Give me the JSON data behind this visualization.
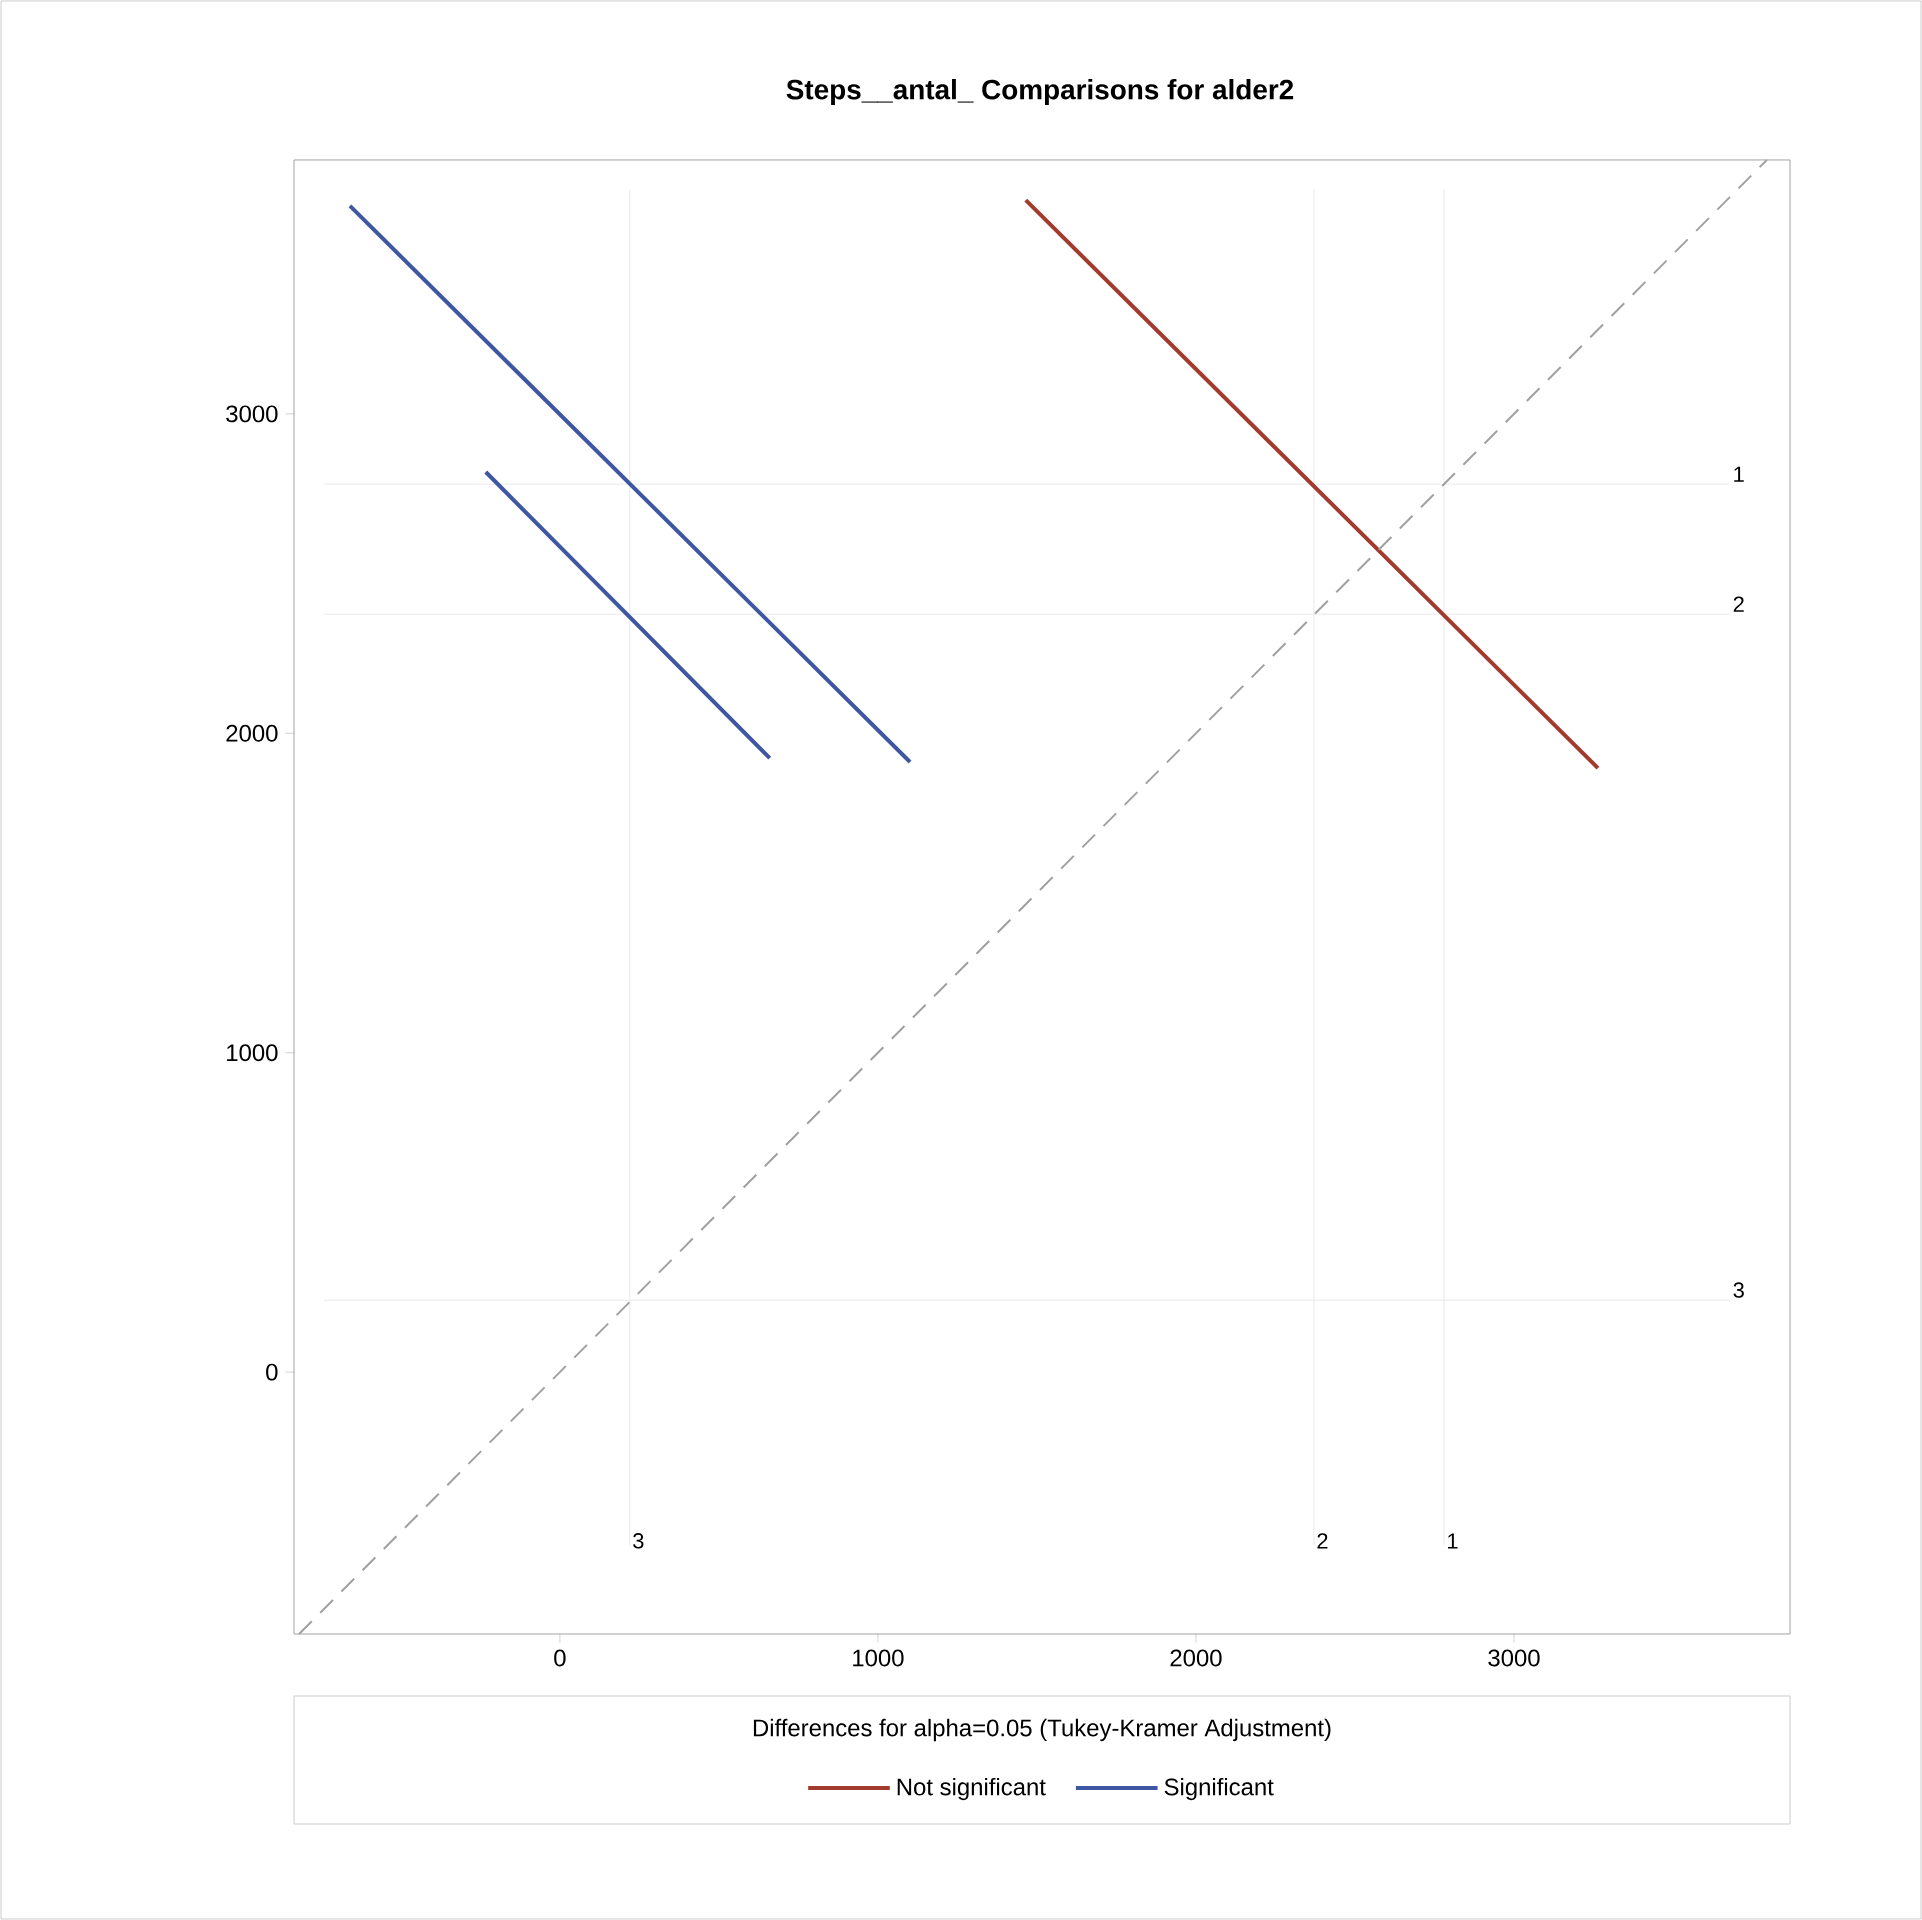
{
  "chart_data": {
    "type": "line",
    "title": "Steps__antal_ Comparisons for alder2",
    "legend_title": "Differences for alpha=0.05 (Tukey-Kramer Adjustment)",
    "xlim": [
      -836,
      3868
    ],
    "ylim": [
      -820,
      3795
    ],
    "xticks": [
      0,
      1000,
      2000,
      3000
    ],
    "yticks": [
      0,
      1000,
      2000,
      3000
    ],
    "grid": false,
    "legend": "bottom",
    "series": [
      {
        "name": "Not significant",
        "color": "#a23a2e",
        "x": [
          1465,
          3264
        ],
        "values": [
          3669,
          1891
        ]
      },
      {
        "name": "Significant",
        "color": "#3f57a3",
        "x": [
          -660,
          1101,
          200,
          -233,
          660
        ],
        "values": [
          3651,
          1910,
          null,
          2818,
          1922
        ]
      },
      {
        "color": "#a0a0a0",
        "line_style": "dashed",
        "x": [
          -820,
          3795
        ],
        "values": [
          -820,
          3795
        ]
      }
    ],
    "ref_lines": [
      {
        "axis": "x",
        "value": 2780
      },
      {
        "axis": "x",
        "value": 2371
      },
      {
        "axis": "x",
        "value": 220
      },
      {
        "axis": "y",
        "value": 2780
      },
      {
        "axis": "y",
        "value": 2373
      },
      {
        "axis": "y",
        "value": 225
      }
    ],
    "annotations": [
      {
        "text": "1",
        "x": 2780,
        "y": -560
      },
      {
        "text": "2",
        "x": 2371,
        "y": -560
      },
      {
        "text": "3",
        "x": 220,
        "y": -560
      },
      {
        "text": "1",
        "x": 3680,
        "y": 2780
      },
      {
        "text": "2",
        "x": 3680,
        "y": 2373
      },
      {
        "text": "3",
        "x": 3680,
        "y": 225
      }
    ]
  }
}
